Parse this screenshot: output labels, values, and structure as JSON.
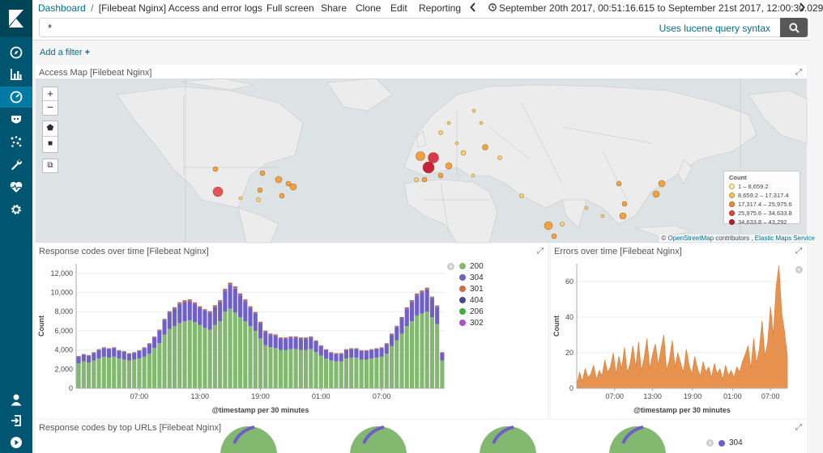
{
  "breadcrumb": {
    "root": "Dashboard",
    "separator": "/",
    "current": "[Filebeat Nginx] Access and error logs"
  },
  "menu": {
    "full_screen": "Full screen",
    "share": "Share",
    "clone": "Clone",
    "edit": "Edit",
    "reporting": "Reporting",
    "time_range": "September 20th 2017, 00:51:16.615 to September 21st 2017, 12:00:30.029"
  },
  "query": {
    "value": "*",
    "lucene": "Uses lucene query syntax"
  },
  "filter": {
    "add_label": "Add a filter"
  },
  "panels": {
    "map": {
      "title": "Access Map [Filebeat Nginx]",
      "zoom_in": "+",
      "zoom_out": "−",
      "attribution_prefix": "©",
      "attribution_osm": "OpenStreetMap",
      "attribution_mid": "contributors ,",
      "attribution_ems": "Elastic Maps Service",
      "legend": {
        "title": "Count",
        "ranges": [
          "1 – 8,659.2",
          "8,659.2 – 17,317.4",
          "17,317.4 – 25,975.6",
          "25,975.6 – 34,633.8",
          "34,633.8 – 43,292"
        ]
      }
    },
    "response_codes": {
      "title": "Response codes over time [Filebeat Nginx]"
    },
    "errors": {
      "title": "Errors over time [Filebeat Nginx]"
    },
    "top_urls": {
      "title": "Response codes by top URLs [Filebeat Nginx]",
      "legend_first": "304"
    }
  },
  "colors": {
    "accent": "#006e8a",
    "sidebar": "#005571",
    "green": "#82b86f",
    "purple": "#6f5fc8",
    "orange": "#e8924f"
  },
  "chart_data": [
    {
      "type": "bar",
      "stacked": true,
      "title": "Response codes over time [Filebeat Nginx]",
      "xlabel": "@timestamp per 30 minutes",
      "ylabel": "Count",
      "ylim": [
        0,
        13000
      ],
      "yticks": [
        "0",
        "2,000",
        "4,000",
        "6,000",
        "8,000",
        "10,000",
        "12,000"
      ],
      "xticks": [
        "07:00",
        "13:00",
        "19:00",
        "01:00",
        "07:00"
      ],
      "legend": [
        "200",
        "304",
        "301",
        "404",
        "206",
        "302"
      ],
      "series": [
        {
          "name": "200",
          "values": [
            2600,
            2800,
            2700,
            2900,
            3100,
            3300,
            3200,
            3300,
            3100,
            3000,
            2900,
            3000,
            3100,
            3300,
            3600,
            4200,
            4700,
            5600,
            6200,
            6500,
            6800,
            7000,
            7100,
            6900,
            6600,
            6300,
            6100,
            6600,
            7000,
            8000,
            8300,
            7900,
            7400,
            7000,
            6500,
            6000,
            5200,
            4500,
            4300,
            4200,
            4000,
            4000,
            4100,
            4100,
            4000,
            4000,
            4100,
            3800,
            3400,
            3100,
            2900,
            2800,
            2800,
            3100,
            3200,
            3200,
            3000,
            3000,
            3100,
            3200,
            3300,
            3600,
            4400,
            5000,
            5700,
            6500,
            7000,
            7600,
            7800,
            8000,
            7400,
            6700,
            2900
          ]
        },
        {
          "name": "304",
          "values": [
            700,
            700,
            700,
            800,
            900,
            900,
            900,
            900,
            800,
            800,
            700,
            700,
            800,
            900,
            1000,
            1100,
            1300,
            1500,
            1700,
            1800,
            2000,
            2000,
            2000,
            1900,
            1800,
            1800,
            1800,
            1900,
            2000,
            2200,
            2500,
            2500,
            2300,
            2100,
            1900,
            1800,
            1600,
            1400,
            1300,
            1300,
            1200,
            1200,
            1200,
            1200,
            1200,
            1200,
            1200,
            1100,
            1000,
            900,
            800,
            800,
            800,
            900,
            900,
            900,
            900,
            900,
            900,
            900,
            900,
            1000,
            1200,
            1400,
            1600,
            1800,
            2000,
            2100,
            2200,
            2300,
            2000,
            1800,
            800
          ]
        },
        {
          "name": "301",
          "values": [
            40,
            40,
            40,
            40,
            50,
            50,
            50,
            50,
            50,
            50,
            40,
            40,
            50,
            50,
            60,
            60,
            80,
            90,
            100,
            110,
            120,
            120,
            120,
            110,
            110,
            100,
            100,
            110,
            120,
            130,
            150,
            150,
            140,
            120,
            110,
            100,
            90,
            80,
            80,
            80,
            70,
            70,
            70,
            70,
            70,
            70,
            70,
            60,
            60,
            50,
            50,
            50,
            50,
            50,
            50,
            50,
            50,
            50,
            50,
            50,
            50,
            60,
            70,
            80,
            90,
            100,
            120,
            130,
            130,
            140,
            120,
            100,
            50
          ]
        },
        {
          "name": "404",
          "values": [
            20,
            20,
            20,
            20,
            20,
            20,
            20,
            20,
            20,
            20,
            20,
            20,
            20,
            20,
            30,
            30,
            30,
            40,
            40,
            40,
            50,
            50,
            50,
            40,
            40,
            40,
            40,
            40,
            50,
            50,
            60,
            60,
            50,
            50,
            40,
            40,
            40,
            30,
            30,
            30,
            30,
            30,
            30,
            30,
            30,
            30,
            30,
            30,
            20,
            20,
            20,
            20,
            20,
            20,
            20,
            20,
            20,
            20,
            20,
            20,
            20,
            30,
            30,
            30,
            40,
            40,
            50,
            50,
            50,
            50,
            40,
            40,
            20
          ]
        },
        {
          "name": "206",
          "values": [
            10,
            10,
            10,
            10,
            10,
            10,
            10,
            10,
            10,
            10,
            10,
            10,
            10,
            10,
            10,
            10,
            10,
            10,
            10,
            10,
            10,
            10,
            10,
            10,
            10,
            10,
            10,
            10,
            10,
            10,
            10,
            10,
            10,
            10,
            10,
            10,
            10,
            10,
            10,
            10,
            10,
            10,
            10,
            10,
            10,
            10,
            10,
            10,
            10,
            10,
            10,
            10,
            10,
            10,
            10,
            10,
            10,
            10,
            10,
            10,
            10,
            10,
            10,
            10,
            10,
            10,
            10,
            10,
            10,
            10,
            10,
            10,
            10
          ]
        },
        {
          "name": "302",
          "values": [
            5,
            5,
            5,
            5,
            5,
            5,
            5,
            5,
            5,
            5,
            5,
            5,
            5,
            5,
            5,
            5,
            5,
            5,
            5,
            5,
            5,
            5,
            5,
            5,
            5,
            5,
            5,
            5,
            5,
            5,
            5,
            5,
            5,
            5,
            5,
            5,
            5,
            5,
            5,
            5,
            5,
            5,
            5,
            5,
            5,
            5,
            5,
            5,
            5,
            5,
            5,
            5,
            5,
            5,
            5,
            5,
            5,
            5,
            5,
            5,
            5,
            5,
            5,
            5,
            5,
            5,
            5,
            5,
            5,
            5,
            5,
            5,
            5
          ]
        }
      ]
    },
    {
      "type": "area",
      "title": "Errors over time [Filebeat Nginx]",
      "xlabel": "@timestamp per 30 minutes",
      "ylabel": "Count",
      "ylim": [
        0,
        70
      ],
      "yticks": [
        "0",
        "20",
        "40",
        "60"
      ],
      "xticks": [
        "07:00",
        "13:00",
        "19:00",
        "01:00",
        "07:00"
      ],
      "values": [
        2,
        9,
        4,
        11,
        6,
        8,
        13,
        5,
        10,
        7,
        16,
        9,
        12,
        20,
        8,
        18,
        11,
        23,
        9,
        14,
        24,
        12,
        26,
        10,
        17,
        28,
        11,
        19,
        25,
        13,
        22,
        30,
        10,
        16,
        27,
        12,
        20,
        14,
        9,
        22,
        13,
        8,
        18,
        11,
        7,
        15,
        9,
        12,
        6,
        14,
        8,
        11,
        5,
        13,
        7,
        10,
        6,
        12,
        9,
        15,
        19,
        24,
        11,
        28,
        14,
        22,
        38,
        18,
        26,
        46,
        30,
        57,
        69,
        42,
        32,
        18
      ]
    }
  ]
}
